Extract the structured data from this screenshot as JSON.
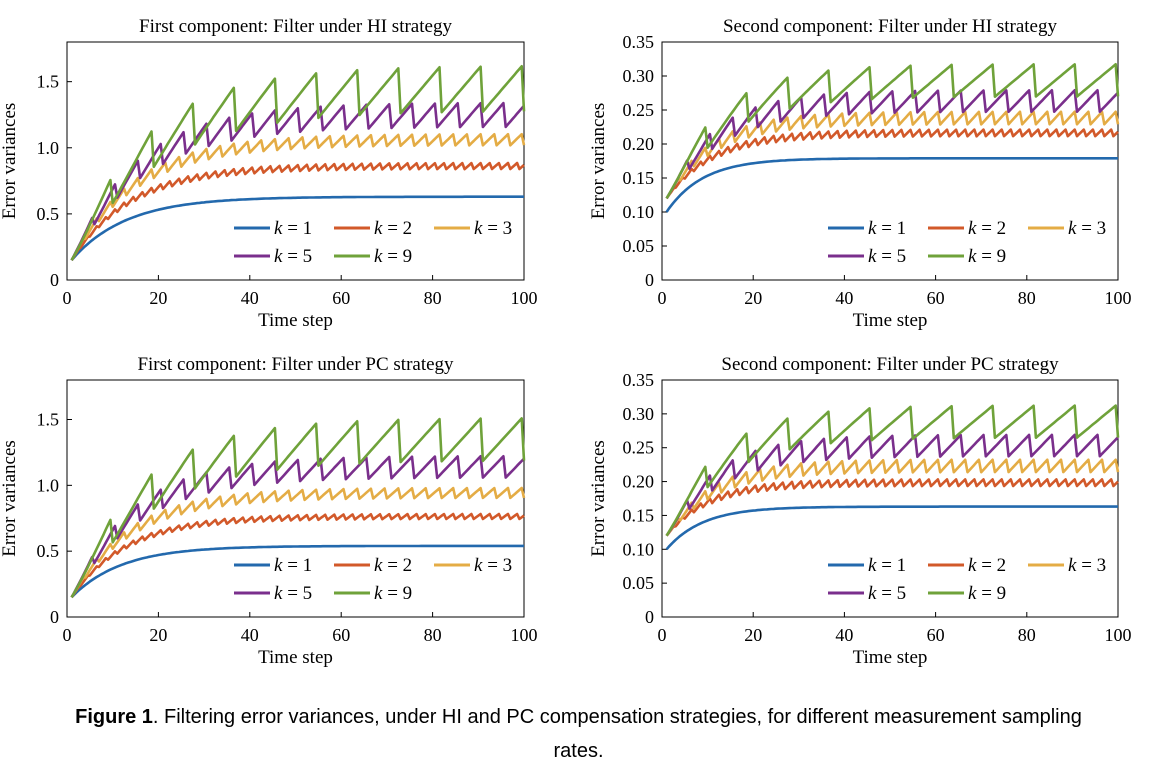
{
  "figure": {
    "caption_label": "Figure 1",
    "caption_text": ".  Filtering error variances, under HI and PC compensation strategies, for different measurement sampling",
    "caption_text2": "rates."
  },
  "series_colors": {
    "k = 1": "#2369ad",
    "k = 2": "#d2592a",
    "k = 3": "#e4ac45",
    "k = 5": "#7a2f8c",
    "k = 9": "#6fa23a"
  },
  "chart_data": [
    {
      "type": "line",
      "title": "First component: Filter under HI strategy",
      "xlabel": "Time step",
      "ylabel": "Error variances",
      "xlim": [
        0,
        100
      ],
      "ylim": [
        0,
        1.8
      ],
      "xticks": [
        "0",
        "20",
        "40",
        "60",
        "80",
        "100"
      ],
      "yticks": [
        "0",
        "0.5",
        "1.0",
        "1.5"
      ],
      "legend_position": "lower-right",
      "series": [
        {
          "name": "k = 1",
          "period": 1,
          "start": 0.15,
          "limit": 0.63,
          "tau": 12,
          "amp": 0.0
        },
        {
          "name": "k = 2",
          "period": 2,
          "start": 0.15,
          "limit": 0.87,
          "tau": 13,
          "amp": 0.06
        },
        {
          "name": "k = 3",
          "period": 3,
          "start": 0.15,
          "limit": 1.07,
          "tau": 14,
          "amp": 0.1
        },
        {
          "name": "k = 5",
          "period": 5,
          "start": 0.15,
          "limit": 1.26,
          "tau": 15,
          "amp": 0.2
        },
        {
          "name": "k = 9",
          "period": 9,
          "start": 0.15,
          "limit": 1.46,
          "tau": 17,
          "amp": 0.36
        }
      ]
    },
    {
      "type": "line",
      "title": "Second component: Filter under HI strategy",
      "xlabel": "Time step",
      "ylabel": "Error variances",
      "xlim": [
        0,
        100
      ],
      "ylim": [
        0,
        0.35
      ],
      "xticks": [
        "0",
        "20",
        "40",
        "60",
        "80",
        "100"
      ],
      "yticks": [
        "0",
        "0.05",
        "0.10",
        "0.15",
        "0.20",
        "0.25",
        "0.30",
        "0.35"
      ],
      "legend_position": "lower-right",
      "series": [
        {
          "name": "k = 1",
          "period": 1,
          "start": 0.1,
          "limit": 0.179,
          "tau": 8,
          "amp": 0.0
        },
        {
          "name": "k = 2",
          "period": 2,
          "start": 0.12,
          "limit": 0.218,
          "tau": 10,
          "amp": 0.013
        },
        {
          "name": "k = 3",
          "period": 3,
          "start": 0.12,
          "limit": 0.24,
          "tau": 10,
          "amp": 0.022
        },
        {
          "name": "k = 5",
          "period": 5,
          "start": 0.12,
          "limit": 0.265,
          "tau": 11,
          "amp": 0.035
        },
        {
          "name": "k = 9",
          "period": 9,
          "start": 0.12,
          "limit": 0.295,
          "tau": 12,
          "amp": 0.05
        }
      ]
    },
    {
      "type": "line",
      "title": "First component: Filter under PC strategy",
      "xlabel": "Time step",
      "ylabel": "Error variances",
      "xlim": [
        0,
        100
      ],
      "ylim": [
        0,
        1.8
      ],
      "xticks": [
        "0",
        "20",
        "40",
        "60",
        "80",
        "100"
      ],
      "yticks": [
        "0",
        "0.5",
        "1.0",
        "1.5"
      ],
      "legend_position": "lower-right",
      "series": [
        {
          "name": "k = 1",
          "period": 1,
          "start": 0.15,
          "limit": 0.54,
          "tau": 11,
          "amp": 0.0
        },
        {
          "name": "k = 2",
          "period": 2,
          "start": 0.15,
          "limit": 0.77,
          "tau": 12,
          "amp": 0.05
        },
        {
          "name": "k = 3",
          "period": 3,
          "start": 0.15,
          "limit": 0.95,
          "tau": 13,
          "amp": 0.09
        },
        {
          "name": "k = 5",
          "period": 5,
          "start": 0.15,
          "limit": 1.15,
          "tau": 14,
          "amp": 0.18
        },
        {
          "name": "k = 9",
          "period": 9,
          "start": 0.15,
          "limit": 1.36,
          "tau": 16,
          "amp": 0.34
        }
      ]
    },
    {
      "type": "line",
      "title": "Second component: Filter under PC strategy",
      "xlabel": "Time step",
      "ylabel": "Error variances",
      "xlim": [
        0,
        100
      ],
      "ylim": [
        0,
        0.35
      ],
      "xticks": [
        "0",
        "20",
        "40",
        "60",
        "80",
        "100"
      ],
      "yticks": [
        "0",
        "0.05",
        "0.10",
        "0.15",
        "0.20",
        "0.25",
        "0.30",
        "0.35"
      ],
      "legend_position": "lower-right",
      "series": [
        {
          "name": "k = 1",
          "period": 1,
          "start": 0.1,
          "limit": 0.163,
          "tau": 8,
          "amp": 0.0
        },
        {
          "name": "k = 2",
          "period": 2,
          "start": 0.12,
          "limit": 0.2,
          "tau": 9,
          "amp": 0.013
        },
        {
          "name": "k = 3",
          "period": 3,
          "start": 0.12,
          "limit": 0.225,
          "tau": 10,
          "amp": 0.022
        },
        {
          "name": "k = 5",
          "period": 5,
          "start": 0.12,
          "limit": 0.255,
          "tau": 11,
          "amp": 0.035
        },
        {
          "name": "k = 9",
          "period": 9,
          "start": 0.12,
          "limit": 0.29,
          "tau": 12,
          "amp": 0.05
        }
      ]
    }
  ]
}
